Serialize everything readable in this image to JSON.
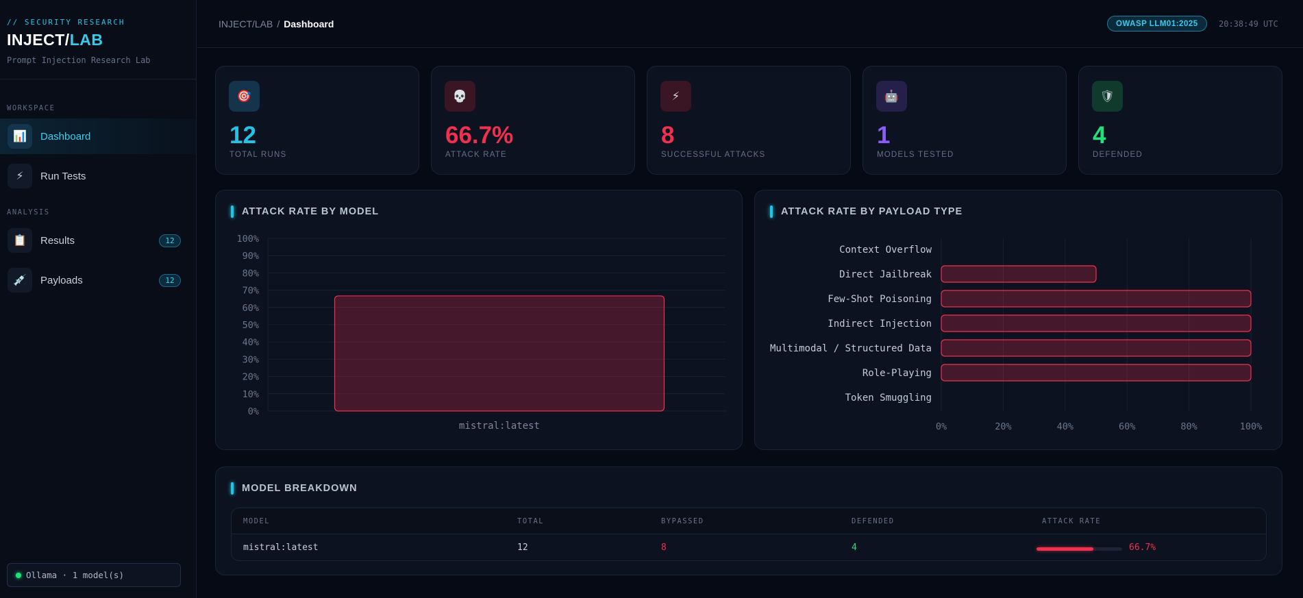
{
  "brand": {
    "tag": "// SECURITY RESEARCH",
    "title_main": "INJECT/",
    "title_accent": "LAB",
    "subtitle": "Prompt Injection Research Lab"
  },
  "sidebar": {
    "sections": [
      {
        "label": "WORKSPACE"
      },
      {
        "label": "ANALYSIS"
      }
    ],
    "items": [
      {
        "label": "Dashboard",
        "icon": "bar-chart-icon",
        "glyph": "📊",
        "active": true
      },
      {
        "label": "Run Tests",
        "icon": "lightning-icon",
        "glyph": "⚡"
      },
      {
        "label": "Results",
        "icon": "clipboard-icon",
        "glyph": "📋",
        "badge": "12"
      },
      {
        "label": "Payloads",
        "icon": "syringe-icon",
        "glyph": "💉",
        "badge": "12"
      }
    ],
    "status": "Ollama · 1 model(s)"
  },
  "header": {
    "breadcrumb_root": "INJECT/LAB",
    "breadcrumb_sep": "/",
    "breadcrumb_current": "Dashboard",
    "badge": "OWASP LLM01:2025",
    "clock": "20:38:49 UTC"
  },
  "stats": [
    {
      "value": "12",
      "label": "TOTAL RUNS",
      "icon": "target-icon",
      "glyph": "🎯",
      "color": "#22c4e6",
      "bg": "#13344a"
    },
    {
      "value": "66.7%",
      "label": "ATTACK RATE",
      "icon": "skull-icon",
      "glyph": "💀",
      "color": "#f0304f",
      "bg": "#3a1524"
    },
    {
      "value": "8",
      "label": "SUCCESSFUL ATTACKS",
      "icon": "lightning-icon",
      "glyph": "⚡",
      "color": "#f0304f",
      "bg": "#3a1524"
    },
    {
      "value": "1",
      "label": "MODELS TESTED",
      "icon": "robot-icon",
      "glyph": "🤖",
      "color": "#8b5cf6",
      "bg": "#24204a"
    },
    {
      "value": "4",
      "label": "DEFENDED",
      "icon": "shield-icon",
      "glyph": "🛡",
      "color": "#22e07a",
      "bg": "#0f3a2c"
    }
  ],
  "panels": {
    "by_model_title": "ATTACK RATE BY MODEL",
    "by_payload_title": "ATTACK RATE BY PAYLOAD TYPE",
    "breakdown_title": "MODEL BREAKDOWN"
  },
  "chart_data": [
    {
      "type": "bar",
      "title": "ATTACK RATE BY MODEL",
      "categories": [
        "mistral:latest"
      ],
      "values": [
        66.7
      ],
      "ylim": [
        0,
        100
      ],
      "yticks": [
        "0%",
        "10%",
        "20%",
        "30%",
        "40%",
        "50%",
        "60%",
        "70%",
        "80%",
        "90%",
        "100%"
      ],
      "grid": true,
      "color": "#f0304f"
    },
    {
      "type": "bar",
      "orientation": "horizontal",
      "title": "ATTACK RATE BY PAYLOAD TYPE",
      "categories": [
        "Context Overflow",
        "Direct Jailbreak",
        "Few-Shot Poisoning",
        "Indirect Injection",
        "Multimodal / Structured Data",
        "Role-Playing",
        "Token Smuggling"
      ],
      "values": [
        0,
        50,
        100,
        100,
        100,
        100,
        0
      ],
      "xlim": [
        0,
        100
      ],
      "xticks": [
        "0%",
        "20%",
        "40%",
        "60%",
        "80%",
        "100%"
      ],
      "grid": true,
      "color": "#f0304f"
    }
  ],
  "table": {
    "headers": [
      "MODEL",
      "TOTAL",
      "BYPASSED",
      "DEFENDED",
      "ATTACK RATE"
    ],
    "rows": [
      {
        "model": "mistral:latest",
        "total": "12",
        "bypassed": "8",
        "defended": "4",
        "rate": "66.7%",
        "rate_value": 66.7
      }
    ]
  }
}
